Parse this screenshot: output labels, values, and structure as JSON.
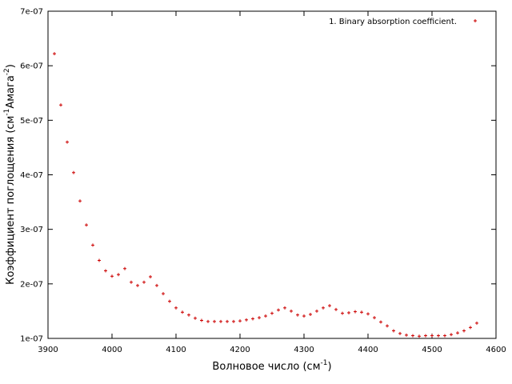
{
  "chart_data": {
    "type": "scatter",
    "xlabel": {
      "main": "Волновое число (см",
      "sup": "-1",
      "tail": ")"
    },
    "ylabel": {
      "main": "Коэффициент поглощения (см",
      "sup1": "-1",
      "mid": "Амага",
      "sup2": "-2",
      "tail": ")"
    },
    "xlim": [
      3900,
      4600
    ],
    "ylim": [
      1e-07,
      7e-07
    ],
    "xticks": [
      3900,
      4000,
      4100,
      4200,
      4300,
      4400,
      4500,
      4600
    ],
    "xtick_labels": [
      "3900",
      "4000",
      "4100",
      "4200",
      "4300",
      "4400",
      "4500",
      "4600"
    ],
    "yticks": [
      1e-07,
      2e-07,
      3e-07,
      4e-07,
      5e-07,
      6e-07,
      7e-07
    ],
    "ytick_labels": [
      "1e-07",
      "2e-07",
      "3e-07",
      "4e-07",
      "5e-07",
      "6e-07",
      "7e-07"
    ],
    "legend_position": "top-right",
    "grid": false,
    "marker_color": "#cc0000",
    "series": [
      {
        "name": "1. Binary  absorption coefficient.",
        "x": [
          3910,
          3920,
          3930,
          3940,
          3950,
          3960,
          3970,
          3980,
          3990,
          4000,
          4010,
          4020,
          4030,
          4040,
          4050,
          4060,
          4070,
          4080,
          4090,
          4100,
          4110,
          4120,
          4130,
          4140,
          4150,
          4160,
          4170,
          4180,
          4190,
          4200,
          4210,
          4220,
          4230,
          4240,
          4250,
          4260,
          4270,
          4280,
          4290,
          4300,
          4310,
          4320,
          4330,
          4340,
          4350,
          4360,
          4370,
          4380,
          4390,
          4400,
          4410,
          4420,
          4430,
          4440,
          4450,
          4460,
          4470,
          4480,
          4490,
          4500,
          4510,
          4520,
          4530,
          4540,
          4550,
          4560,
          4570
        ],
        "y": [
          6.22e-07,
          5.28e-07,
          4.6e-07,
          4.04e-07,
          3.52e-07,
          3.08e-07,
          2.71e-07,
          2.43e-07,
          2.24e-07,
          2.14e-07,
          2.17e-07,
          2.28e-07,
          2.03e-07,
          1.97e-07,
          2.03e-07,
          2.13e-07,
          1.97e-07,
          1.82e-07,
          1.68e-07,
          1.56e-07,
          1.48e-07,
          1.43e-07,
          1.37e-07,
          1.33e-07,
          1.31e-07,
          1.31e-07,
          1.31e-07,
          1.31e-07,
          1.31e-07,
          1.32e-07,
          1.34e-07,
          1.36e-07,
          1.38e-07,
          1.41e-07,
          1.46e-07,
          1.52e-07,
          1.56e-07,
          1.5e-07,
          1.43e-07,
          1.41e-07,
          1.44e-07,
          1.5e-07,
          1.56e-07,
          1.6e-07,
          1.53e-07,
          1.46e-07,
          1.47e-07,
          1.49e-07,
          1.48e-07,
          1.45e-07,
          1.38e-07,
          1.3e-07,
          1.23e-07,
          1.14e-07,
          1.09e-07,
          1.06e-07,
          1.05e-07,
          1.04e-07,
          1.05e-07,
          1.05e-07,
          1.05e-07,
          1.05e-07,
          1.07e-07,
          1.1e-07,
          1.14e-07,
          1.2e-07,
          1.28e-07
        ]
      }
    ]
  }
}
